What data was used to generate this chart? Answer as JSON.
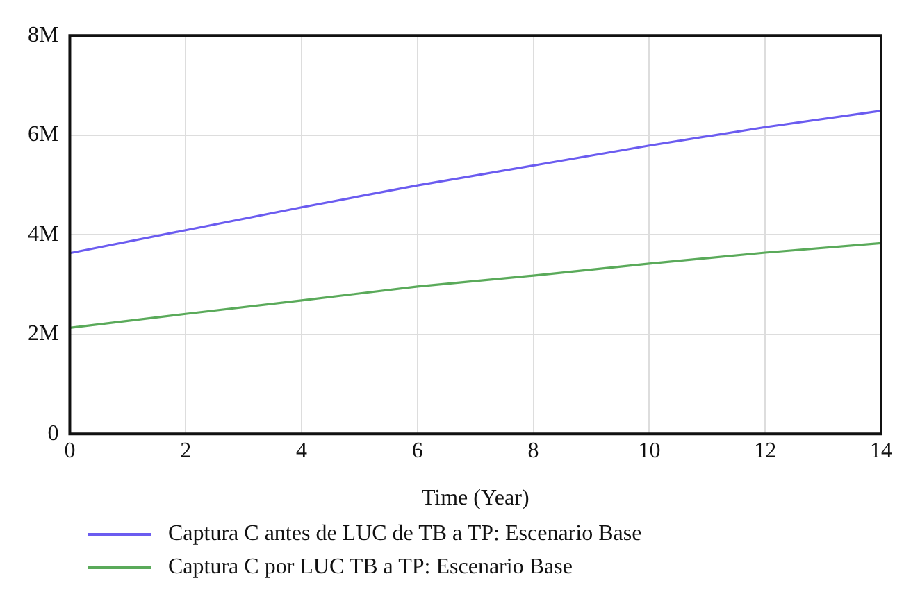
{
  "chart_data": {
    "type": "line",
    "xlabel": "Time (Year)",
    "x": [
      0,
      2,
      4,
      6,
      8,
      10,
      12,
      14
    ],
    "series": [
      {
        "name": "Captura C antes de LUC de TB a TP: Escenario Base",
        "color": "#6b5cf0",
        "values": [
          3.63,
          4.09,
          4.55,
          4.99,
          5.39,
          5.79,
          6.16,
          6.49
        ]
      },
      {
        "name": "Captura C por LUC TB a TP: Escenario Base",
        "color": "#5aaa5a",
        "values": [
          2.13,
          2.41,
          2.68,
          2.96,
          3.18,
          3.42,
          3.64,
          3.83
        ]
      }
    ],
    "xlim": [
      0,
      14
    ],
    "xticks": [
      0,
      2,
      4,
      6,
      8,
      10,
      12,
      14
    ],
    "ylim": [
      0,
      8
    ],
    "yticks": [
      0,
      {
        "value": 2,
        "label": "2M"
      },
      {
        "value": 4,
        "label": "4M"
      },
      {
        "value": 6,
        "label": "6M"
      },
      {
        "value": 8,
        "label": "8M"
      }
    ],
    "grid": true,
    "legend": "bottom",
    "marker": "none",
    "line_style": "solid"
  }
}
